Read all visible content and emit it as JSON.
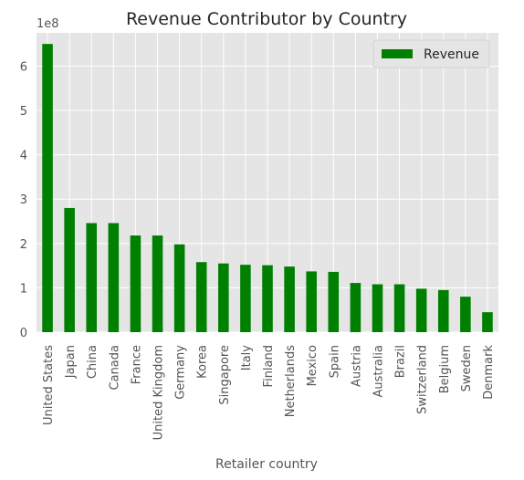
{
  "chart_data": {
    "type": "bar",
    "title": "Revenue Contributor by Country",
    "xlabel": "Retailer country",
    "ylabel": "",
    "y_offset_label": "1e8",
    "ylim": [
      0,
      6.75
    ],
    "yticks": [
      0,
      1,
      2,
      3,
      4,
      5,
      6
    ],
    "grid": true,
    "legend_position": "top-right",
    "categories": [
      "United States",
      "Japan",
      "China",
      "Canada",
      "France",
      "United Kingdom",
      "Germany",
      "Korea",
      "Singapore",
      "Italy",
      "Finland",
      "Netherlands",
      "Mexico",
      "Spain",
      "Austria",
      "Australia",
      "Brazil",
      "Switzerland",
      "Belgium",
      "Sweden",
      "Denmark"
    ],
    "series": [
      {
        "name": "Revenue",
        "color": "#008000",
        "values": [
          6.5,
          2.8,
          2.46,
          2.46,
          2.18,
          2.18,
          1.98,
          1.58,
          1.55,
          1.52,
          1.51,
          1.48,
          1.37,
          1.36,
          1.11,
          1.08,
          1.08,
          0.98,
          0.95,
          0.8,
          0.45
        ]
      }
    ],
    "value_multiplier": 100000000
  },
  "style": {
    "plot_background": "#e5e5e5",
    "grid_color": "#ffffff",
    "text_color": "#555555"
  }
}
